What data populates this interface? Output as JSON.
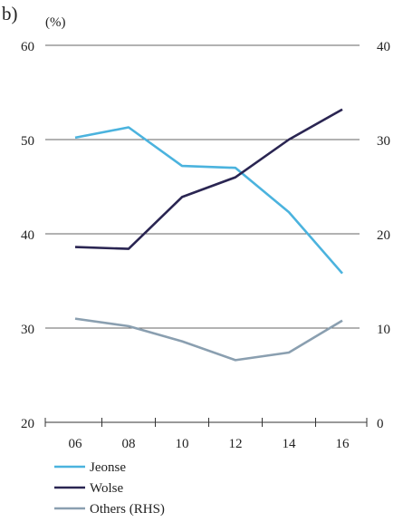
{
  "chart_data": {
    "type": "line",
    "panel_label": "b)",
    "unit_label": "(%)",
    "categories": [
      "06",
      "08",
      "10",
      "12",
      "14",
      "16"
    ],
    "y_left": {
      "ticks": [
        "60",
        "50",
        "40",
        "30",
        "20"
      ],
      "range": [
        20,
        60
      ]
    },
    "y_right": {
      "ticks": [
        "40",
        "30",
        "20",
        "10",
        "0"
      ],
      "range": [
        0,
        40
      ]
    },
    "grid": true,
    "legend_position": "bottom-left",
    "series": [
      {
        "name": "Jeonse",
        "axis": "left",
        "color": "#4bb3de",
        "values": [
          50.2,
          51.3,
          47.2,
          47.0,
          42.3,
          35.8
        ]
      },
      {
        "name": "Wolse",
        "axis": "left",
        "color": "#2a2552",
        "values": [
          38.6,
          38.4,
          43.9,
          46.0,
          50.0,
          53.2
        ]
      },
      {
        "name": "Others (RHS)",
        "axis": "right",
        "color": "#8a9fb0",
        "values": [
          11.0,
          10.2,
          8.6,
          6.6,
          7.4,
          10.8
        ]
      }
    ]
  }
}
